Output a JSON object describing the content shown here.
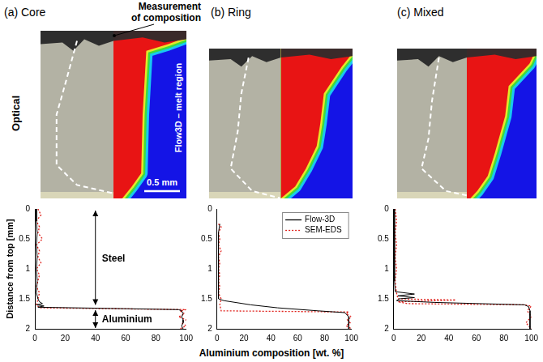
{
  "figure": {
    "row_label": "Optical",
    "panels": [
      {
        "title": "(a) Core",
        "callout": "Measurement of composition",
        "image_label": "Flow3D – melt region",
        "scale_bar": "0.5 mm"
      },
      {
        "title": "(b) Ring"
      },
      {
        "title": "(c) Mixed"
      }
    ]
  },
  "chart_data": [
    {
      "type": "line",
      "ylabel": "Distance from top [mm]",
      "annotations": [
        "Steel",
        "Aluminium"
      ],
      "xlim": [
        0,
        100
      ],
      "xticks": [
        0,
        20,
        40,
        60,
        80,
        100
      ],
      "ylim": [
        2,
        0
      ],
      "yticks": [
        0,
        0.5,
        1,
        1.5,
        2
      ],
      "grid": false,
      "series": [
        {
          "name": "Flow-3D",
          "color": "#000000",
          "line_style": "solid",
          "x": [
            1,
            1,
            1.5,
            1,
            1.5,
            1,
            1.5,
            1,
            2,
            3,
            5,
            1,
            6,
            2,
            50,
            95,
            97,
            98,
            97,
            98,
            98,
            97,
            98
          ],
          "y": [
            0,
            0.2,
            0.4,
            0.6,
            0.8,
            1.0,
            1.2,
            1.4,
            1.5,
            1.55,
            1.58,
            1.6,
            1.62,
            1.64,
            1.66,
            1.68,
            1.7,
            1.75,
            1.8,
            1.85,
            1.9,
            1.95,
            2.0
          ]
        },
        {
          "name": "SEM-EDS",
          "color": "#e0201a",
          "line_style": "dotted",
          "x": [
            2,
            4,
            1,
            3,
            2,
            5,
            1,
            3,
            2,
            4,
            1,
            3,
            2,
            1,
            3,
            2,
            1,
            3,
            100,
            96,
            99,
            95,
            100,
            97,
            100,
            96
          ],
          "y": [
            0,
            0.1,
            0.2,
            0.3,
            0.4,
            0.5,
            0.6,
            0.7,
            0.8,
            0.9,
            1.0,
            1.1,
            1.2,
            1.3,
            1.4,
            1.5,
            1.6,
            1.65,
            1.68,
            1.7,
            1.75,
            1.8,
            1.85,
            1.9,
            1.95,
            2.0
          ]
        }
      ]
    },
    {
      "type": "line",
      "xlabel": "Aluminium composition [wt. %]",
      "legend": "upper right",
      "xlim": [
        0,
        100
      ],
      "xticks": [
        0,
        20,
        40,
        60,
        80,
        100
      ],
      "ylim": [
        2,
        0
      ],
      "yticks": [
        0,
        0.5,
        1,
        1.5,
        2
      ],
      "grid": false,
      "series": [
        {
          "name": "Flow-3D",
          "color": "#000000",
          "line_style": "solid",
          "x": [
            2,
            1,
            1,
            1,
            1,
            1,
            1,
            1,
            5,
            25,
            45,
            75,
            95,
            98,
            98,
            98
          ],
          "y": [
            0.25,
            0.4,
            0.6,
            0.8,
            1.0,
            1.2,
            1.4,
            1.5,
            1.53,
            1.6,
            1.65,
            1.7,
            1.73,
            1.8,
            1.9,
            2.0
          ]
        },
        {
          "name": "SEM-EDS",
          "color": "#e0201a",
          "line_style": "dotted",
          "x": [
            1,
            3,
            1,
            2,
            1,
            3,
            1,
            2,
            1,
            2,
            1,
            2,
            1,
            3,
            2,
            3,
            98,
            96,
            100,
            97,
            99,
            96,
            100
          ],
          "y": [
            0.25,
            0.3,
            0.4,
            0.5,
            0.6,
            0.7,
            0.8,
            0.9,
            1.0,
            1.1,
            1.2,
            1.3,
            1.4,
            1.5,
            1.6,
            1.7,
            1.72,
            1.75,
            1.8,
            1.85,
            1.9,
            1.95,
            2.0
          ]
        }
      ]
    },
    {
      "type": "line",
      "xlim": [
        0,
        100
      ],
      "xticks": [
        0,
        20,
        40,
        60,
        80,
        100
      ],
      "ylim": [
        2,
        0
      ],
      "yticks": [
        0,
        0.5,
        1,
        1.5,
        2
      ],
      "grid": false,
      "series": [
        {
          "name": "Flow-3D",
          "color": "#000000",
          "line_style": "solid",
          "x": [
            0.5,
            0.5,
            0.5,
            0.5,
            1,
            15,
            3,
            15,
            4,
            2,
            30,
            95,
            98,
            99,
            99,
            99,
            99
          ],
          "y": [
            0,
            0.4,
            0.8,
            1.2,
            1.38,
            1.42,
            1.45,
            1.48,
            1.5,
            1.53,
            1.56,
            1.6,
            1.63,
            1.7,
            1.8,
            1.9,
            2.0
          ]
        },
        {
          "name": "SEM-EDS",
          "color": "#e0201a",
          "line_style": "dotted",
          "x": [
            1,
            2,
            1,
            2,
            1,
            2,
            1,
            2,
            3,
            45,
            3,
            10,
            95,
            100,
            97,
            100,
            96,
            100
          ],
          "y": [
            0,
            0.2,
            0.4,
            0.6,
            0.8,
            1.0,
            1.2,
            1.4,
            1.5,
            1.52,
            1.55,
            1.58,
            1.6,
            1.62,
            1.7,
            1.8,
            1.9,
            2.0
          ]
        }
      ]
    }
  ]
}
